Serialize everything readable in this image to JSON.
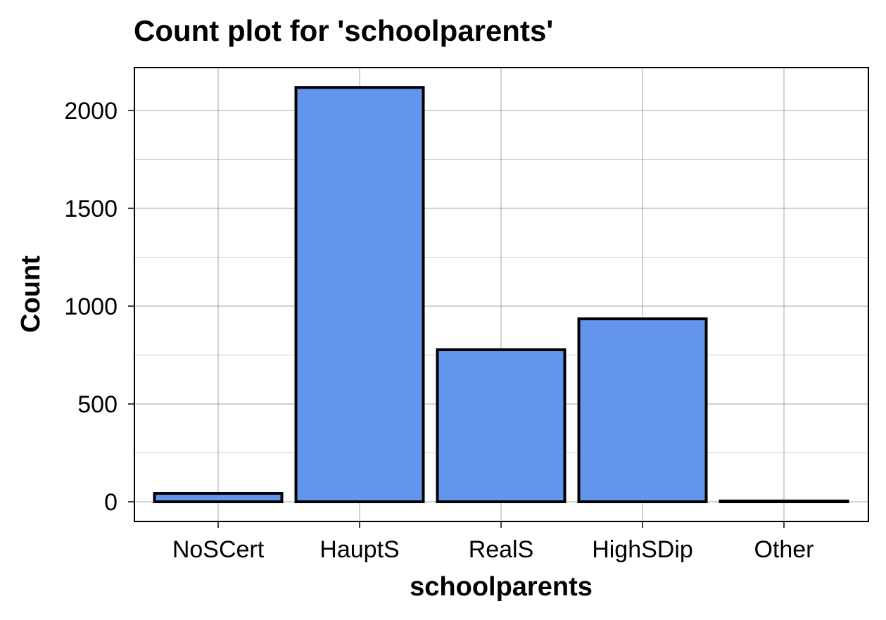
{
  "chart_data": {
    "type": "bar",
    "title": "Count plot for 'schoolparents'",
    "xlabel": "schoolparents",
    "ylabel": "Count",
    "categories": [
      "NoSCert",
      "HauptS",
      "RealS",
      "HighSDip",
      "Other"
    ],
    "values": [
      43,
      2118,
      777,
      935,
      4
    ],
    "ylim": [
      -100,
      2220
    ],
    "yticks": [
      0,
      500,
      1000,
      1500,
      2000
    ],
    "ytick_labels": [
      "0",
      "500",
      "1000",
      "1500",
      "2000"
    ],
    "grid": true,
    "legend": "none",
    "colors": {
      "bar_fill": "#6495ED",
      "bar_edge": "#000000",
      "background": "#FFFFFF"
    }
  }
}
